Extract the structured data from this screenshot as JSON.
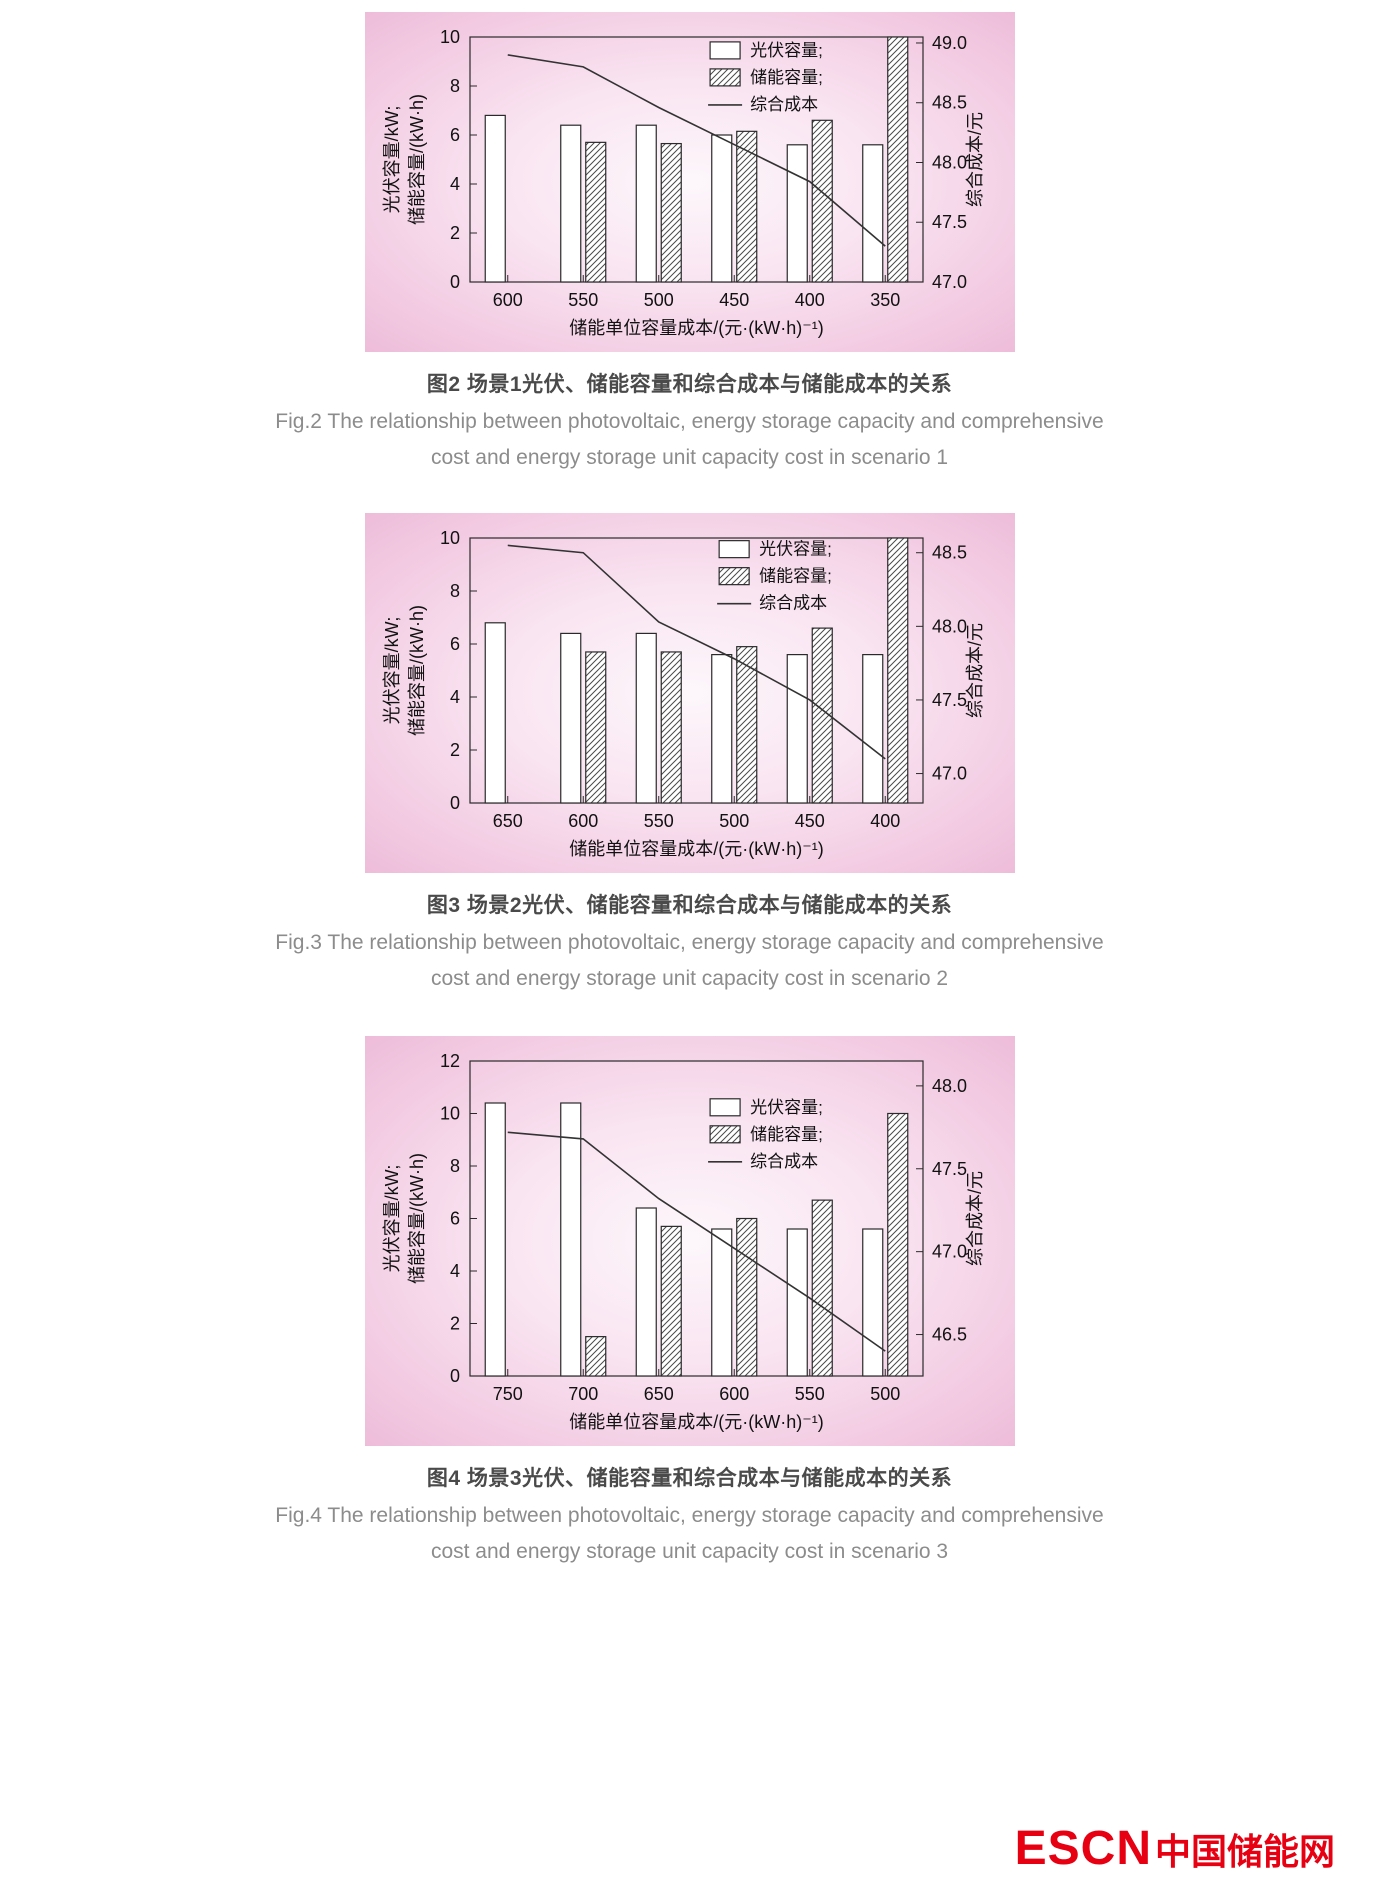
{
  "figures": [
    {
      "caption_zh": "图2  场景1光伏、储能容量和综合成本与储能成本的关系",
      "caption_en_line1": "Fig.2  The relationship between photovoltaic, energy storage capacity and comprehensive",
      "caption_en_line2": "cost and energy storage unit capacity cost in scenario 1"
    },
    {
      "caption_zh": "图3  场景2光伏、储能容量和综合成本与储能成本的关系",
      "caption_en_line1": "Fig.3  The relationship between photovoltaic, energy storage capacity and comprehensive",
      "caption_en_line2": "cost and energy storage unit capacity cost in scenario 2"
    },
    {
      "caption_zh": "图4  场景3光伏、储能容量和综合成本与储能成本的关系",
      "caption_en_line1": "Fig.4  The relationship between photovoltaic, energy storage capacity and comprehensive",
      "caption_en_line2": "cost and energy storage unit capacity cost in scenario 3"
    }
  ],
  "watermark": {
    "escn": "ESCN",
    "cn": "中国储能网",
    "color": "#e60012"
  },
  "chart_data": [
    {
      "type": "bar",
      "categories": [
        "600",
        "550",
        "500",
        "450",
        "400",
        "350"
      ],
      "series": [
        {
          "name": "光伏容量",
          "kind": "bar",
          "style": "open",
          "axis": "left",
          "values": [
            6.8,
            6.4,
            6.4,
            6.0,
            5.6,
            5.6
          ]
        },
        {
          "name": "储能容量",
          "kind": "bar",
          "style": "hatch",
          "axis": "left",
          "values": [
            null,
            5.7,
            5.65,
            6.15,
            6.6,
            10.0
          ]
        },
        {
          "name": "综合成本",
          "kind": "line",
          "axis": "right",
          "values": [
            48.9,
            48.8,
            48.46,
            48.15,
            47.84,
            47.3
          ]
        }
      ],
      "legend": [
        "光伏容量;",
        "储能容量;",
        "综合成本"
      ],
      "legend_position": "top-right-inside",
      "legend_frac": {
        "fx": 0.53,
        "fy": 0.02
      },
      "xlabel": "储能单位容量成本/(元·(kW·h)⁻¹)",
      "ylabel_left": [
        "光伏容量/kW;",
        "储能容量/(kW·h)"
      ],
      "ylabel_right": "综合成本/元",
      "ylim_left": [
        0,
        10
      ],
      "yticks_left": [
        "0",
        "2",
        "4",
        "6",
        "8",
        "10"
      ],
      "ylim_right": [
        47,
        49.05
      ],
      "yticks_right": [
        "47.0",
        "47.5",
        "48.0",
        "48.5",
        "49.0"
      ],
      "grid": false
    },
    {
      "type": "bar",
      "categories": [
        "650",
        "600",
        "550",
        "500",
        "450",
        "400"
      ],
      "series": [
        {
          "name": "光伏容量",
          "kind": "bar",
          "style": "open",
          "axis": "left",
          "values": [
            6.8,
            6.4,
            6.4,
            5.6,
            5.6,
            5.6
          ]
        },
        {
          "name": "储能容量",
          "kind": "bar",
          "style": "hatch",
          "axis": "left",
          "values": [
            null,
            5.7,
            5.7,
            5.9,
            6.6,
            10.0
          ]
        },
        {
          "name": "综合成本",
          "kind": "line",
          "axis": "right",
          "values": [
            48.55,
            48.5,
            48.03,
            47.78,
            47.5,
            47.1
          ]
        }
      ],
      "legend": [
        "光伏容量;",
        "储能容量;",
        "综合成本"
      ],
      "legend_position": "top-right-inside",
      "legend_frac": {
        "fx": 0.55,
        "fy": 0.01
      },
      "xlabel": "储能单位容量成本/(元·(kW·h)⁻¹)",
      "ylabel_left": [
        "光伏容量/kW;",
        "储能容量/(kW·h)"
      ],
      "ylabel_right": "综合成本/元",
      "ylim_left": [
        0,
        10
      ],
      "yticks_left": [
        "0",
        "2",
        "4",
        "6",
        "8",
        "10"
      ],
      "ylim_right": [
        46.8,
        48.6
      ],
      "yticks_right": [
        "47.0",
        "47.5",
        "48.0",
        "48.5"
      ],
      "grid": false
    },
    {
      "type": "bar",
      "categories": [
        "750",
        "700",
        "650",
        "600",
        "550",
        "500"
      ],
      "series": [
        {
          "name": "光伏容量",
          "kind": "bar",
          "style": "open",
          "axis": "left",
          "values": [
            10.4,
            10.4,
            6.4,
            5.6,
            5.6,
            5.6
          ]
        },
        {
          "name": "储能容量",
          "kind": "bar",
          "style": "hatch",
          "axis": "left",
          "values": [
            null,
            1.5,
            5.7,
            6.0,
            6.7,
            10.0
          ]
        },
        {
          "name": "综合成本",
          "kind": "line",
          "axis": "right",
          "values": [
            47.72,
            47.68,
            47.32,
            47.02,
            46.72,
            46.4
          ]
        }
      ],
      "legend": [
        "光伏容量;",
        "储能容量;",
        "综合成本"
      ],
      "legend_position": "top-right-inside",
      "legend_frac": {
        "fx": 0.53,
        "fy": 0.12
      },
      "xlabel": "储能单位容量成本/(元·(kW·h)⁻¹)",
      "ylabel_left": [
        "光伏容量/kW;",
        "储能容量/(kW·h)"
      ],
      "ylabel_right": "综合成本/元",
      "ylim_left": [
        0,
        12
      ],
      "yticks_left": [
        "0",
        "2",
        "4",
        "6",
        "8",
        "10",
        "12"
      ],
      "ylim_right": [
        46.25,
        48.15
      ],
      "yticks_right": [
        "46.5",
        "47.0",
        "47.5",
        "48.0"
      ],
      "grid": false
    }
  ]
}
